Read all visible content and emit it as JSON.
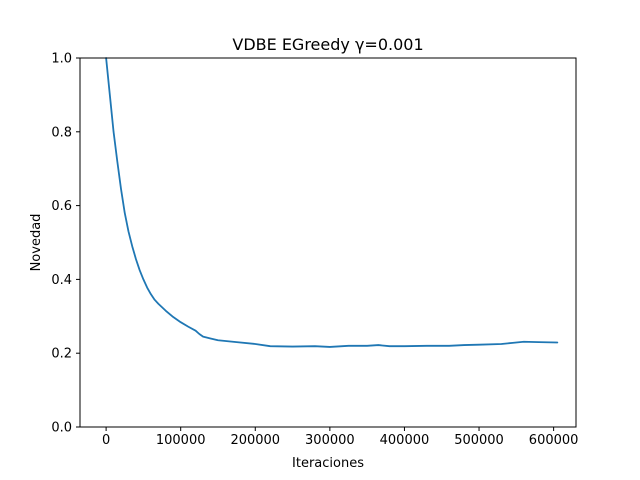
{
  "chart_data": {
    "type": "line",
    "title": "VDBE EGreedy  γ=0.001",
    "xlabel": "Iteraciones",
    "ylabel": "Novedad",
    "xlim": [
      -35000,
      630000
    ],
    "ylim": [
      0.0,
      1.0
    ],
    "x_ticks": [
      0,
      100000,
      200000,
      300000,
      400000,
      500000,
      600000
    ],
    "x_tick_labels": [
      "0",
      "100000",
      "200000",
      "300000",
      "400000",
      "500000",
      "600000"
    ],
    "y_ticks": [
      0.0,
      0.2,
      0.4,
      0.6,
      0.8,
      1.0
    ],
    "y_tick_labels": [
      "0.0",
      "0.2",
      "0.4",
      "0.6",
      "0.8",
      "1.0"
    ],
    "grid": false,
    "line_color": "#1f77b4",
    "series": [
      {
        "x": [
          0,
          5000,
          10000,
          15000,
          20000,
          25000,
          30000,
          35000,
          40000,
          45000,
          50000,
          55000,
          60000,
          65000,
          70000,
          80000,
          90000,
          100000,
          110000,
          120000,
          125000,
          130000,
          140000,
          150000,
          175000,
          200000,
          220000,
          250000,
          280000,
          300000,
          325000,
          350000,
          365000,
          380000,
          400000,
          430000,
          460000,
          480000,
          500000,
          530000,
          545000,
          560000,
          580000,
          605000
        ],
        "y": [
          1.0,
          0.9,
          0.8,
          0.72,
          0.645,
          0.58,
          0.53,
          0.49,
          0.455,
          0.425,
          0.4,
          0.378,
          0.36,
          0.345,
          0.334,
          0.315,
          0.298,
          0.284,
          0.272,
          0.261,
          0.252,
          0.245,
          0.24,
          0.235,
          0.23,
          0.225,
          0.219,
          0.218,
          0.219,
          0.217,
          0.22,
          0.22,
          0.222,
          0.219,
          0.219,
          0.22,
          0.22,
          0.222,
          0.223,
          0.225,
          0.228,
          0.231,
          0.23,
          0.229
        ]
      }
    ]
  }
}
